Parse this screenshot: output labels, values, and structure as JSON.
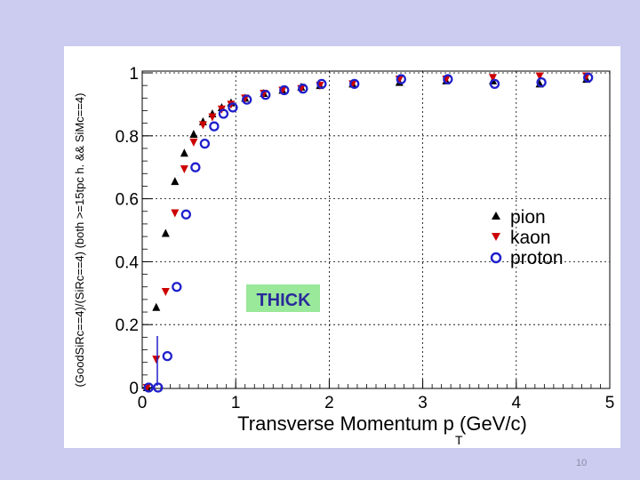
{
  "slide": {
    "number": "10"
  },
  "chart_data": {
    "type": "scatter",
    "title": "",
    "xlabel": "Transverse Momentum p",
    "xlabel_subscript": "T",
    "xlabel_units": "(GeV/c)",
    "ylabel": "(GoodSiRc==4)/(SiRc==4) (both >=15tpc h. && SiMc==4)",
    "xlim": [
      0,
      5
    ],
    "ylim": [
      0,
      1.05
    ],
    "x_ticks": [
      "0",
      "1",
      "2",
      "3",
      "4",
      "5"
    ],
    "y_ticks": [
      "0",
      "0.2",
      "0.4",
      "0.6",
      "0.8",
      "1"
    ],
    "grid": true,
    "legend_position": "right-middle",
    "annotation": {
      "text": "THICK",
      "x": 1.27,
      "y": 0.285,
      "color": "#2a2a9a",
      "background": "#9ae89a"
    },
    "colors": {
      "pion": "#000000",
      "kaon": "#cc0000",
      "proton": "#1f1fcc",
      "annotation_bg": "#9ae89a"
    },
    "series": [
      {
        "name": "pion",
        "marker": "triangle-up",
        "x": [
          0.05,
          0.15,
          0.25,
          0.35,
          0.45,
          0.55,
          0.65,
          0.75,
          0.85,
          0.95,
          1.1,
          1.3,
          1.5,
          1.7,
          1.9,
          2.25,
          2.75,
          3.25,
          3.75,
          4.25,
          4.75
        ],
        "y": [
          0.0,
          0.255,
          0.49,
          0.655,
          0.745,
          0.805,
          0.845,
          0.87,
          0.89,
          0.905,
          0.92,
          0.935,
          0.945,
          0.955,
          0.96,
          0.965,
          0.97,
          0.975,
          0.975,
          0.965,
          0.98
        ]
      },
      {
        "name": "kaon",
        "marker": "triangle-down",
        "x": [
          0.05,
          0.15,
          0.25,
          0.35,
          0.45,
          0.55,
          0.65,
          0.75,
          0.85,
          0.95,
          1.1,
          1.3,
          1.5,
          1.7,
          1.9,
          2.25,
          2.75,
          3.25,
          3.75,
          4.25,
          4.75
        ],
        "y": [
          0.0,
          0.09,
          0.305,
          0.555,
          0.695,
          0.78,
          0.835,
          0.86,
          0.885,
          0.9,
          0.92,
          0.935,
          0.945,
          0.95,
          0.96,
          0.965,
          0.98,
          0.98,
          0.985,
          0.99,
          0.99
        ]
      },
      {
        "name": "proton",
        "marker": "circle-open",
        "x": [
          0.05,
          0.15,
          0.25,
          0.35,
          0.45,
          0.55,
          0.65,
          0.75,
          0.85,
          0.95,
          1.1,
          1.3,
          1.5,
          1.7,
          1.9,
          2.25,
          2.75,
          3.25,
          3.75,
          4.25,
          4.75
        ],
        "y": [
          0.0,
          0.0,
          0.1,
          0.32,
          0.55,
          0.7,
          0.775,
          0.83,
          0.87,
          0.89,
          0.915,
          0.93,
          0.945,
          0.95,
          0.965,
          0.965,
          0.98,
          0.98,
          0.965,
          0.97,
          0.985
        ]
      }
    ]
  }
}
